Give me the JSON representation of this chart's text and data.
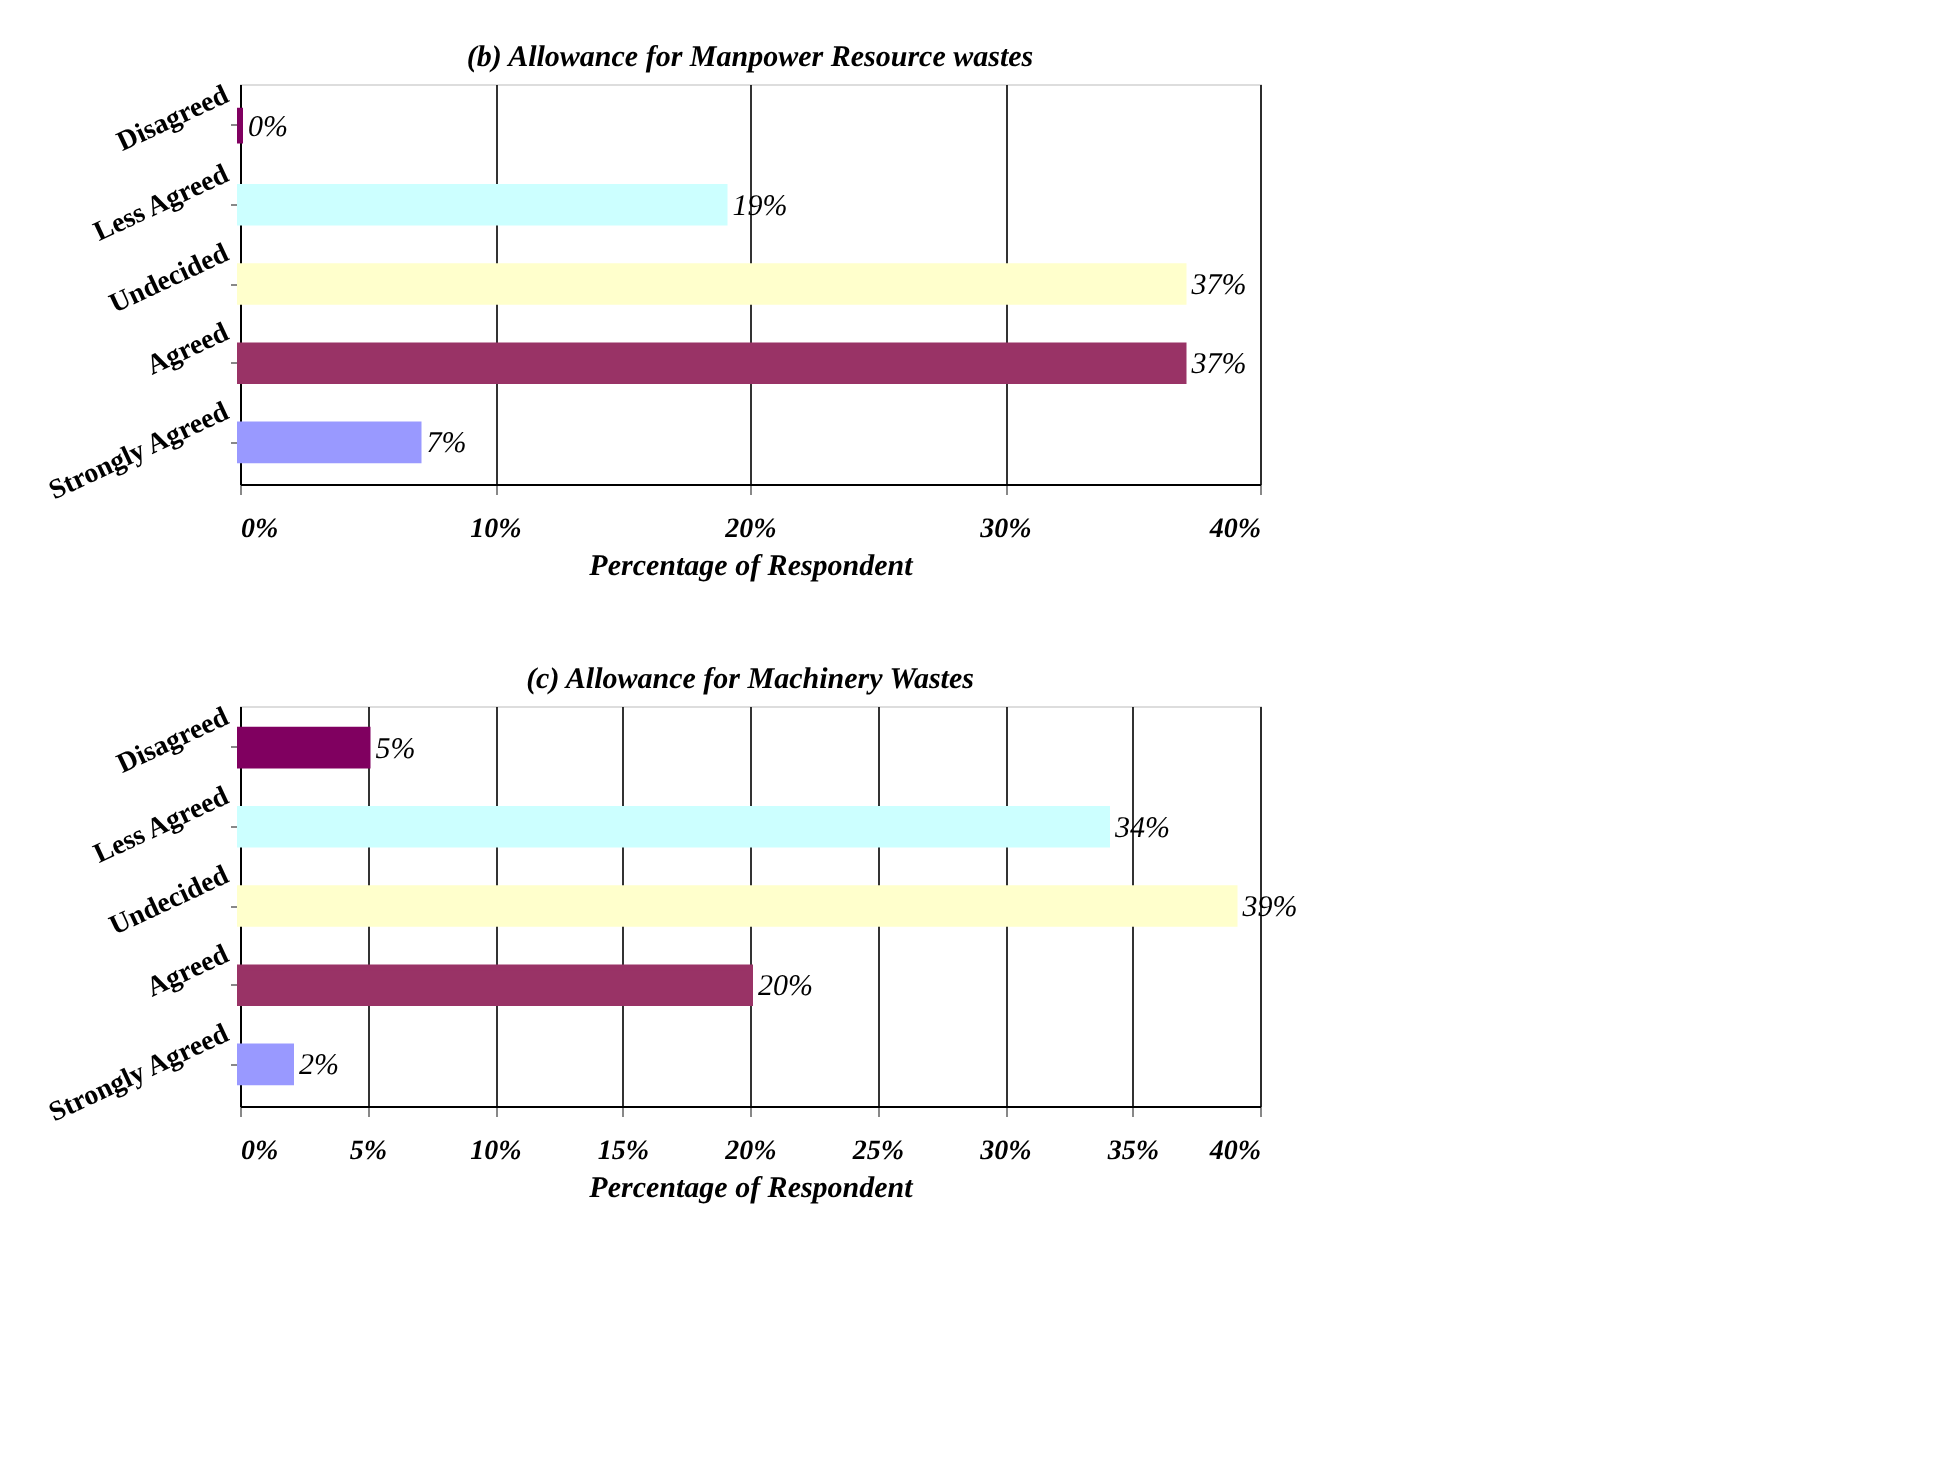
{
  "chart_data": [
    {
      "type": "bar",
      "orientation": "horizontal",
      "title": "(b) Allowance for Manpower Resource wastes",
      "xlabel": "Percentage of Respondent",
      "categories": [
        "Disagreed",
        "Less Agreed",
        "Undecided",
        "Agreed",
        "Strongly Agreed"
      ],
      "values": [
        0,
        19,
        37,
        37,
        7
      ],
      "value_labels": [
        "0%",
        "19%",
        "37%",
        "37%",
        "7%"
      ],
      "colors": [
        "#800060",
        "#ccffff",
        "#ffffcc",
        "#993366",
        "#9999ff"
      ],
      "xlim": [
        0,
        40
      ],
      "xticks": [
        {
          "value": 0,
          "label": "0%"
        },
        {
          "value": 10,
          "label": "10%"
        },
        {
          "value": 20,
          "label": "20%"
        },
        {
          "value": 30,
          "label": "30%"
        },
        {
          "value": 40,
          "label": "40%"
        }
      ],
      "grid": "x",
      "legend": false
    },
    {
      "type": "bar",
      "orientation": "horizontal",
      "title": "(c) Allowance for Machinery Wastes",
      "xlabel": "Percentage of Respondent",
      "categories": [
        "Disagreed",
        "Less Agreed",
        "Undecided",
        "Agreed",
        "Strongly Agreed"
      ],
      "values": [
        5,
        34,
        39,
        20,
        2
      ],
      "value_labels": [
        "5%",
        "34%",
        "39%",
        "20%",
        "2%"
      ],
      "colors": [
        "#800060",
        "#ccffff",
        "#ffffcc",
        "#993366",
        "#9999ff"
      ],
      "xlim": [
        0,
        40
      ],
      "xticks": [
        {
          "value": 0,
          "label": "0%"
        },
        {
          "value": 5,
          "label": "5%"
        },
        {
          "value": 10,
          "label": "10%"
        },
        {
          "value": 15,
          "label": "15%"
        },
        {
          "value": 20,
          "label": "20%"
        },
        {
          "value": 25,
          "label": "25%"
        },
        {
          "value": 30,
          "label": "30%"
        },
        {
          "value": 35,
          "label": "35%"
        },
        {
          "value": 40,
          "label": "40%"
        }
      ],
      "grid": "x",
      "legend": false
    }
  ]
}
